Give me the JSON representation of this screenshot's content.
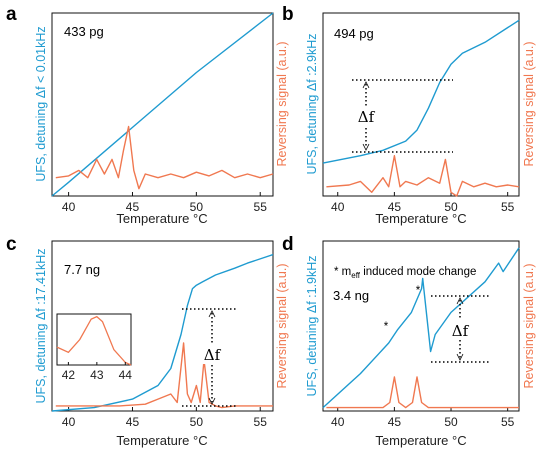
{
  "colors": {
    "ufs": "#1f9bd0",
    "reversing": "#f07850",
    "axis": "#111111"
  },
  "chart_data": [
    {
      "type": "line",
      "panel": "a",
      "mass_label": "433 pg",
      "xlabel": "Temperature °C",
      "ylabel_left": "UFS, detuning Δf < 0.01kHz",
      "ylabel_right": "Reversing signal (a.u.)",
      "xlim": [
        38.7,
        56
      ],
      "x_ticks": [
        "40",
        "45",
        "50",
        "55"
      ],
      "series": [
        {
          "role": "ufs",
          "axis": "left",
          "ylim": [
            0,
            1
          ],
          "x": [
            38.7,
            40,
            45,
            50,
            56
          ],
          "y": [
            0.0,
            0.075,
            0.375,
            0.675,
            1.04
          ]
        },
        {
          "role": "reversing",
          "axis": "right",
          "ylim": [
            0,
            1
          ],
          "x": [
            39,
            40,
            40.8,
            41.5,
            42.2,
            42.8,
            43.4,
            43.9,
            44.3,
            44.7,
            45.1,
            45.5,
            46,
            47,
            48,
            49,
            50,
            51,
            52,
            53,
            54,
            55,
            56
          ],
          "y": [
            0.1,
            0.11,
            0.14,
            0.1,
            0.2,
            0.12,
            0.2,
            0.1,
            0.25,
            0.38,
            0.14,
            0.04,
            0.12,
            0.1,
            0.12,
            0.1,
            0.13,
            0.11,
            0.14,
            0.1,
            0.12,
            0.1,
            0.12
          ]
        }
      ]
    },
    {
      "type": "line",
      "panel": "b",
      "mass_label": "494 pg",
      "xlabel": "Temperature °C",
      "ylabel_left": "UFS, detuning Δf :2.9kHz",
      "ylabel_right": "Reversing signal (a.u.)",
      "xlim": [
        38.7,
        56
      ],
      "x_ticks": [
        "40",
        "45",
        "50",
        "55"
      ],
      "annotation": "Δf",
      "series": [
        {
          "role": "ufs",
          "axis": "left",
          "ylim": [
            0,
            1
          ],
          "x": [
            38.7,
            42,
            44,
            46,
            47,
            48,
            49,
            50,
            51,
            53,
            56
          ],
          "y": [
            0.18,
            0.22,
            0.25,
            0.3,
            0.36,
            0.48,
            0.62,
            0.72,
            0.78,
            0.84,
            0.96
          ]
        },
        {
          "role": "reversing",
          "axis": "right",
          "ylim": [
            0,
            1
          ],
          "x": [
            39,
            41,
            42,
            43,
            44,
            44.5,
            45,
            45.5,
            46,
            47,
            48,
            49,
            49.5,
            50,
            50.5,
            51,
            52,
            53,
            54,
            55,
            56
          ],
          "y": [
            0.05,
            0.06,
            0.08,
            0.02,
            0.1,
            0.05,
            0.22,
            0.05,
            0.08,
            0.06,
            0.1,
            0.07,
            0.2,
            0.02,
            0.0,
            0.08,
            0.05,
            0.07,
            0.05,
            0.06,
            0.05
          ]
        }
      ]
    },
    {
      "type": "line",
      "panel": "c",
      "mass_label": "7.7 ng",
      "xlabel": "Temperature °C",
      "ylabel_left": "UFS, detuning Δf :17.41kHz",
      "ylabel_right": "Reversing signal (a.u.)",
      "xlim": [
        38.7,
        56
      ],
      "x_ticks": [
        "40",
        "45",
        "50",
        "55"
      ],
      "annotation": "Δf",
      "inset": {
        "x_ticks": [
          "42",
          "43",
          "44"
        ],
        "xlim": [
          41.6,
          44.2
        ],
        "x": [
          41.6,
          42.0,
          42.4,
          42.8,
          43.0,
          43.2,
          43.6,
          44.0,
          44.2
        ],
        "y": [
          0.35,
          0.25,
          0.5,
          0.9,
          0.95,
          0.85,
          0.3,
          0.05,
          0.0
        ]
      },
      "series": [
        {
          "role": "ufs",
          "axis": "left",
          "ylim": [
            0,
            1
          ],
          "x": [
            38.7,
            42,
            45,
            47,
            48,
            48.8,
            49.3,
            49.7,
            50,
            50.5,
            51.5,
            53,
            54,
            56
          ],
          "y": [
            0.0,
            0.02,
            0.07,
            0.15,
            0.25,
            0.45,
            0.62,
            0.72,
            0.74,
            0.76,
            0.8,
            0.84,
            0.87,
            0.92
          ]
        },
        {
          "role": "reversing",
          "axis": "right",
          "ylim": [
            0,
            1
          ],
          "x": [
            39,
            44,
            46,
            47,
            48,
            48.5,
            49,
            49.3,
            49.6,
            50,
            50.3,
            50.6,
            51,
            51.5,
            52,
            53,
            56
          ],
          "y": [
            0.03,
            0.03,
            0.04,
            0.07,
            0.1,
            0.05,
            0.4,
            0.1,
            0.05,
            0.15,
            0.05,
            0.3,
            0.05,
            0.03,
            0.02,
            0.03,
            0.03
          ]
        }
      ]
    },
    {
      "type": "line",
      "panel": "d",
      "mass_label": "3.4 ng",
      "note": "* m",
      "note_sub": "eff",
      "note_tail": " induced mode change",
      "xlabel": "Temperature °C",
      "ylabel_left": "UFS, detuning Δf :1.9kHz",
      "ylabel_right": "Reversing signal (a.u.)",
      "xlim": [
        38.7,
        56
      ],
      "x_ticks": [
        "40",
        "45",
        "50",
        "55"
      ],
      "annotation": "Δf",
      "markers": [
        "*",
        "*"
      ],
      "series": [
        {
          "role": "ufs",
          "axis": "left",
          "ylim": [
            0,
            1
          ],
          "x": [
            38.7,
            42,
            44.5,
            44.9,
            45.3,
            46.5,
            47.4,
            47.5,
            48.2,
            48.6,
            50,
            53,
            54.2,
            54.6,
            56
          ],
          "y": [
            0.02,
            0.22,
            0.4,
            0.44,
            0.48,
            0.58,
            0.72,
            0.78,
            0.35,
            0.45,
            0.58,
            0.76,
            0.87,
            0.82,
            0.96
          ]
        },
        {
          "role": "reversing",
          "axis": "right",
          "ylim": [
            0,
            1
          ],
          "x": [
            39,
            44,
            44.6,
            45,
            45.4,
            46,
            46.6,
            47,
            47.4,
            48,
            49,
            52,
            56
          ],
          "y": [
            0.02,
            0.02,
            0.05,
            0.2,
            0.05,
            0.02,
            0.05,
            0.2,
            0.05,
            0.02,
            0.02,
            0.02,
            0.02
          ]
        }
      ]
    }
  ]
}
